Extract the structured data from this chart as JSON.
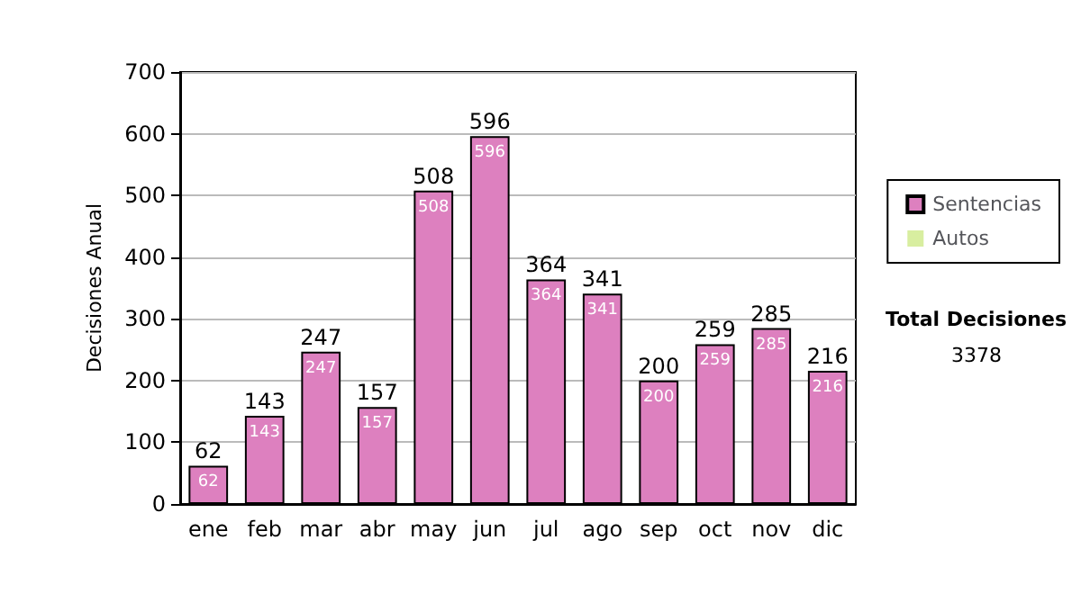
{
  "chart_data": {
    "type": "bar",
    "ylabel": "Decisiones Anual",
    "categories": [
      "ene",
      "feb",
      "mar",
      "abr",
      "may",
      "jun",
      "jul",
      "ago",
      "sep",
      "oct",
      "nov",
      "dic"
    ],
    "series": [
      {
        "name": "Sentencias",
        "color": "#dd80bf",
        "values": [
          62,
          143,
          247,
          157,
          508,
          596,
          364,
          341,
          200,
          259,
          285,
          216
        ],
        "value_labels": [
          "62",
          "143",
          "247",
          "157",
          "508",
          "596",
          "364",
          "341",
          "200",
          "259",
          "285",
          "216"
        ]
      },
      {
        "name": "Autos",
        "color": "#d8eea0",
        "values": [
          0,
          0,
          0,
          0,
          0,
          0,
          0,
          0,
          0,
          0,
          0,
          0
        ]
      }
    ],
    "stacked": true,
    "totals": [
      "62",
      "143",
      "247",
      "157",
      "508",
      "596",
      "364",
      "341",
      "200",
      "259",
      "285",
      "216"
    ],
    "ylim": [
      0,
      700
    ],
    "yticks": [
      0,
      100,
      200,
      300,
      400,
      500,
      600,
      700
    ],
    "grid": "y",
    "legend": "right",
    "annotations": [
      "Total Decisiones",
      "3378"
    ]
  }
}
